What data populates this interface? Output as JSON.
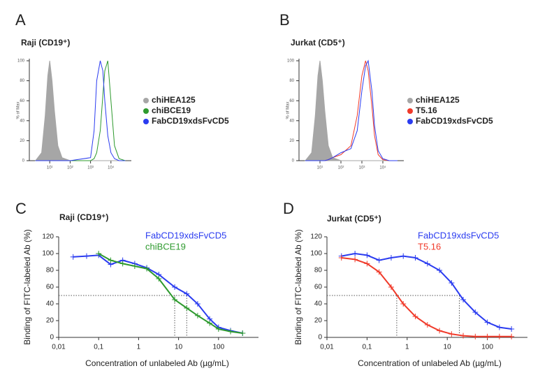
{
  "chart_data": [
    {
      "type": "density",
      "panel": "A",
      "title": "Raji (CD19⁺)",
      "ylabel": "% of Max",
      "x_scale": "log",
      "legend_style": "dot",
      "xlim": [
        1,
        100000
      ],
      "xticks": [
        {
          "value": 10,
          "label": "10¹"
        },
        {
          "value": 100,
          "label": "10²"
        },
        {
          "value": 1000,
          "label": "10³"
        },
        {
          "value": 10000,
          "label": "10⁴"
        }
      ],
      "ylim": [
        0,
        100
      ],
      "yticks": [
        0,
        20,
        40,
        60,
        80,
        100
      ],
      "x": [
        2,
        4,
        6,
        8,
        10,
        13,
        17,
        25,
        40,
        100,
        1000,
        1500,
        2000,
        3000,
        4000,
        5000,
        7000,
        10000,
        15000,
        25000,
        50000
      ],
      "series": [
        {
          "name": "chiHEA125",
          "color": "#a6a6a6",
          "fill": true,
          "values": [
            0,
            8,
            45,
            85,
            100,
            80,
            50,
            15,
            3,
            0,
            0,
            0,
            0,
            0,
            0,
            0,
            0,
            0,
            0,
            0,
            0
          ]
        },
        {
          "name": "chiBCE19",
          "color": "#2e9a2e",
          "fill": false,
          "values": [
            0,
            0,
            0,
            0,
            0,
            0,
            0,
            0,
            0,
            0,
            0,
            2,
            8,
            30,
            65,
            90,
            100,
            60,
            15,
            2,
            0
          ]
        },
        {
          "name": "FabCD19xdsFvCD5",
          "color": "#2b3cf0",
          "fill": false,
          "values": [
            0,
            0,
            0,
            0,
            0,
            0,
            0,
            0,
            0,
            0,
            3,
            30,
            80,
            100,
            90,
            60,
            25,
            8,
            2,
            0,
            0
          ]
        }
      ]
    },
    {
      "type": "density",
      "panel": "B",
      "title": "Jurkat (CD5⁺)",
      "ylabel": "% of Max",
      "x_scale": "log",
      "legend_style": "dot",
      "xlim": [
        1,
        100000
      ],
      "xticks": [
        {
          "value": 10,
          "label": "10¹"
        },
        {
          "value": 100,
          "label": "10²"
        },
        {
          "value": 1000,
          "label": "10³"
        },
        {
          "value": 10000,
          "label": "10⁴"
        }
      ],
      "ylim": [
        0,
        100
      ],
      "yticks": [
        0,
        20,
        40,
        60,
        80,
        100
      ],
      "x": [
        2,
        4,
        6,
        8,
        10,
        13,
        17,
        25,
        40,
        100,
        300,
        600,
        1000,
        1500,
        2000,
        3000,
        4000,
        6000,
        10000,
        20000,
        50000
      ],
      "series": [
        {
          "name": "chiHEA125",
          "color": "#a6a6a6",
          "fill": true,
          "values": [
            0,
            8,
            45,
            85,
            100,
            80,
            50,
            15,
            3,
            0,
            0,
            0,
            0,
            0,
            0,
            0,
            0,
            0,
            0,
            0,
            0
          ]
        },
        {
          "name": "T5.16",
          "color": "#f03a2a",
          "fill": false,
          "values": [
            0,
            0,
            0,
            0,
            0,
            0,
            0,
            1,
            3,
            6,
            15,
            45,
            85,
            100,
            90,
            55,
            25,
            6,
            1,
            0,
            0
          ]
        },
        {
          "name": "FabCD19xdsFvCD5",
          "color": "#2b3cf0",
          "fill": false,
          "values": [
            0,
            0,
            0,
            0,
            0,
            0,
            0,
            1,
            3,
            8,
            12,
            30,
            70,
            95,
            100,
            70,
            35,
            10,
            2,
            0,
            0
          ]
        }
      ]
    },
    {
      "type": "line",
      "panel": "C",
      "title": "Raji (CD19⁺)",
      "ylabel": "Binding of FITC-labeled Ab (%)",
      "xlabel": "Concentration of unlabeled Ab (µg/mL)",
      "x_scale": "log",
      "legend_style": "text",
      "markers": "+",
      "xlim": [
        0.01,
        1000
      ],
      "xticks": [
        {
          "value": 0.01,
          "label": "0,01"
        },
        {
          "value": 0.1,
          "label": "0,1"
        },
        1,
        10,
        100
      ],
      "ylim": [
        0,
        120
      ],
      "yticks": [
        0,
        20,
        40,
        60,
        80,
        100,
        120
      ],
      "x": [
        0.023,
        0.05,
        0.1,
        0.2,
        0.4,
        0.8,
        1.6,
        3.2,
        8,
        16,
        30,
        60,
        100,
        200,
        400
      ],
      "reference": {
        "y": 50,
        "x": [
          8,
          16
        ]
      },
      "series": [
        {
          "name": "FabCD19xdsFvCD5",
          "color": "#2b3cf0",
          "values": [
            96,
            97,
            98,
            87,
            92,
            88,
            83,
            75,
            60,
            52,
            40,
            22,
            12,
            8,
            5
          ]
        },
        {
          "name": "chiBCE19",
          "color": "#2e9a2e",
          "values": [
            null,
            null,
            100,
            92,
            88,
            85,
            82,
            70,
            45,
            35,
            26,
            17,
            10,
            7,
            5
          ]
        }
      ]
    },
    {
      "type": "line",
      "panel": "D",
      "title": "Jurkat (CD5⁺)",
      "ylabel": "Binding of FITC-labeled Ab (%)",
      "xlabel": "Concentration of unlabeled Ab (µg/mL)",
      "x_scale": "log",
      "legend_style": "text",
      "markers": "+",
      "xlim": [
        0.01,
        1000
      ],
      "xticks": [
        {
          "value": 0.01,
          "label": "0,01"
        },
        {
          "value": 0.1,
          "label": "0,1"
        },
        1,
        10,
        100
      ],
      "ylim": [
        0,
        120
      ],
      "yticks": [
        0,
        20,
        40,
        60,
        80,
        100,
        120
      ],
      "x": [
        0.023,
        0.05,
        0.1,
        0.2,
        0.4,
        0.8,
        1.6,
        3.2,
        6.4,
        12.8,
        25,
        50,
        100,
        200,
        400
      ],
      "reference": {
        "y": 50,
        "x": [
          0.55,
          20
        ]
      },
      "series": [
        {
          "name": "FabCD19xdsFvCD5",
          "color": "#2b3cf0",
          "values": [
            97,
            100,
            98,
            92,
            95,
            97,
            95,
            88,
            80,
            65,
            45,
            30,
            18,
            12,
            10
          ]
        },
        {
          "name": "T5.16",
          "color": "#f03a2a",
          "values": [
            95,
            93,
            88,
            78,
            60,
            40,
            25,
            15,
            8,
            4,
            2,
            1,
            1,
            1,
            1
          ]
        }
      ]
    }
  ]
}
